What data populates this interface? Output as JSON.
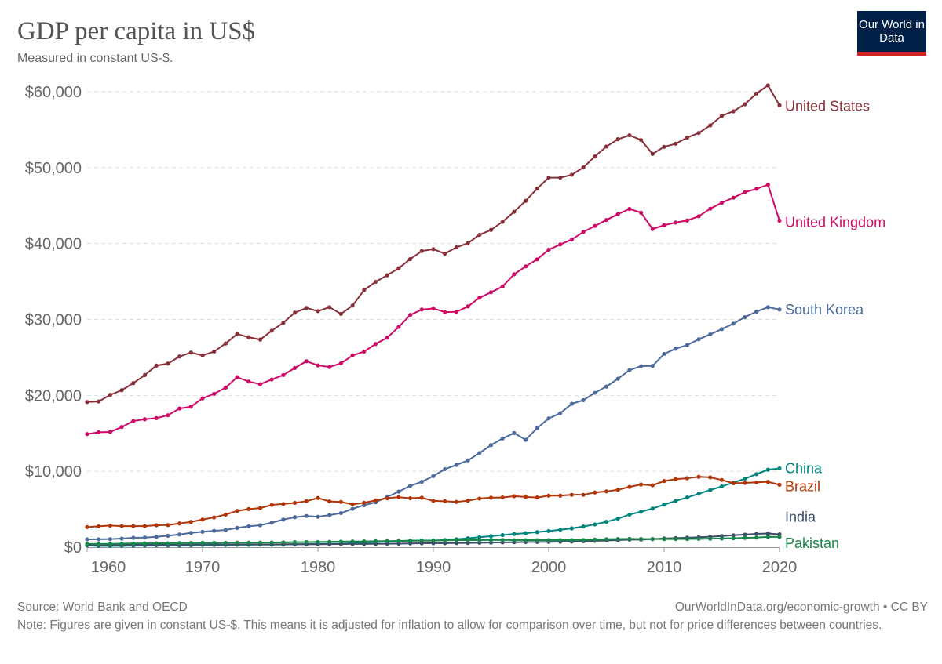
{
  "header": {
    "title": "GDP per capita in US$",
    "subtitle": "Measured in constant US-$.",
    "logo_text": "Our World in Data"
  },
  "footer": {
    "source": "Source: World Bank and OECD",
    "credit": "OurWorldInData.org/economic-growth • CC BY",
    "note": "Note: Figures are given in constant US-$. This means it is adjusted for inflation to allow for comparison over time, but not for price differences between countries."
  },
  "colors": {
    "logo_bg": "#002147",
    "logo_bar": "#ce261e",
    "grid": "#dddddd"
  },
  "chart_data": {
    "type": "line",
    "title": "GDP per capita in US$",
    "subtitle": "Measured in constant US-$.",
    "xlim": [
      1960,
      2020
    ],
    "ylim": [
      0,
      60000
    ],
    "x_ticks": [
      1960,
      1970,
      1980,
      1990,
      2000,
      2010,
      2020
    ],
    "y_ticks": [
      0,
      10000,
      20000,
      30000,
      40000,
      50000,
      60000
    ],
    "y_tick_labels": [
      "$0",
      "$10,000",
      "$20,000",
      "$30,000",
      "$40,000",
      "$50,000",
      "$60,000"
    ],
    "x_tick_labels": [
      "1960",
      "1970",
      "1980",
      "1990",
      "2000",
      "2010",
      "2020"
    ],
    "grid": "horizontal dashed",
    "legend": "inline labels at line ends (right)",
    "x_start": 1960,
    "series": [
      {
        "name": "United States",
        "color": "#883039",
        "values": [
          19130,
          19200,
          20060,
          20680,
          21610,
          22680,
          23920,
          24190,
          25120,
          25640,
          25260,
          25770,
          26840,
          28080,
          27660,
          27350,
          28520,
          29560,
          30900,
          31520,
          31100,
          31620,
          30730,
          31830,
          33860,
          34960,
          35820,
          36750,
          37950,
          39020,
          39260,
          38670,
          39500,
          40050,
          41150,
          41800,
          42870,
          44180,
          45620,
          47240,
          48680,
          48680,
          49060,
          50020,
          51470,
          52780,
          53740,
          54260,
          53640,
          51810,
          52740,
          53150,
          53950,
          54560,
          55560,
          56840,
          57420,
          58350,
          59760,
          60830,
          58210
        ]
      },
      {
        "name": "United Kingdom",
        "color": "#cf0a66",
        "values": [
          14900,
          15140,
          15180,
          15830,
          16620,
          16860,
          17000,
          17380,
          18270,
          18510,
          19610,
          20200,
          21020,
          22400,
          21820,
          21470,
          22090,
          22680,
          23610,
          24500,
          23950,
          23740,
          24220,
          25260,
          25770,
          26770,
          27600,
          29010,
          30590,
          31310,
          31450,
          30970,
          31000,
          31720,
          32860,
          33580,
          34340,
          35950,
          36990,
          37920,
          39190,
          39880,
          40530,
          41530,
          42320,
          43110,
          43870,
          44560,
          44070,
          41910,
          42420,
          42770,
          43040,
          43590,
          44590,
          45380,
          46040,
          46760,
          47200,
          47750,
          43010
        ]
      },
      {
        "name": "South Korea",
        "color": "#4c6a9c",
        "values": [
          1030,
          1040,
          1065,
          1130,
          1240,
          1270,
          1370,
          1510,
          1680,
          1890,
          2030,
          2160,
          2270,
          2540,
          2750,
          2890,
          3230,
          3640,
          3950,
          4110,
          4010,
          4220,
          4490,
          5050,
          5540,
          5920,
          6620,
          7320,
          8080,
          8610,
          9370,
          10280,
          10840,
          11430,
          12400,
          13450,
          14320,
          15040,
          14150,
          15690,
          16970,
          17650,
          18890,
          19370,
          20340,
          21160,
          22190,
          23330,
          23850,
          23880,
          25460,
          26150,
          26630,
          27390,
          28040,
          28730,
          29450,
          30310,
          31030,
          31620,
          31310
        ]
      },
      {
        "name": "China",
        "color": "#00847e",
        "values": [
          230,
          170,
          160,
          175,
          200,
          230,
          250,
          230,
          220,
          250,
          290,
          300,
          300,
          320,
          320,
          340,
          330,
          350,
          380,
          410,
          430,
          450,
          480,
          530,
          600,
          680,
          730,
          800,
          860,
          880,
          870,
          950,
          1050,
          1180,
          1320,
          1460,
          1600,
          1740,
          1850,
          1990,
          2130,
          2300,
          2480,
          2720,
          3000,
          3340,
          3760,
          4290,
          4670,
          5090,
          5610,
          6100,
          6550,
          7040,
          7530,
          8010,
          8500,
          9020,
          9620,
          10210,
          10380
        ]
      },
      {
        "name": "Brazil",
        "color": "#b13507",
        "values": [
          2650,
          2750,
          2850,
          2780,
          2780,
          2780,
          2890,
          2920,
          3130,
          3330,
          3640,
          3920,
          4300,
          4780,
          5020,
          5150,
          5570,
          5700,
          5840,
          6060,
          6480,
          6030,
          5960,
          5640,
          5850,
          6170,
          6450,
          6590,
          6450,
          6520,
          6100,
          6060,
          5960,
          6130,
          6410,
          6520,
          6550,
          6720,
          6620,
          6550,
          6790,
          6790,
          6900,
          6900,
          7210,
          7350,
          7560,
          7940,
          8260,
          8150,
          8710,
          8960,
          9090,
          9270,
          9200,
          8850,
          8430,
          8470,
          8540,
          8610,
          8220
        ]
      },
      {
        "name": "India",
        "color": "#3c4e66",
        "values": [
          300,
          305,
          310,
          315,
          325,
          315,
          310,
          325,
          335,
          350,
          360,
          355,
          350,
          355,
          355,
          370,
          370,
          385,
          400,
          380,
          390,
          400,
          410,
          420,
          430,
          440,
          455,
          465,
          495,
          515,
          530,
          525,
          540,
          555,
          580,
          605,
          635,
          650,
          680,
          690,
          700,
          725,
          740,
          785,
          830,
          880,
          935,
          990,
          1000,
          1070,
          1150,
          1200,
          1250,
          1310,
          1380,
          1470,
          1570,
          1660,
          1750,
          1810,
          1700
        ]
      },
      {
        "name": "Pakistan",
        "color": "#18864b",
        "values": [
          420,
          430,
          440,
          460,
          490,
          500,
          510,
          520,
          540,
          560,
          580,
          570,
          575,
          590,
          600,
          610,
          620,
          635,
          660,
          670,
          690,
          715,
          740,
          750,
          765,
          790,
          805,
          830,
          855,
          865,
          875,
          900,
          930,
          925,
          930,
          945,
          950,
          925,
          925,
          925,
          930,
          925,
          925,
          950,
          1000,
          1050,
          1080,
          1100,
          1090,
          1075,
          1070,
          1075,
          1085,
          1100,
          1125,
          1150,
          1190,
          1225,
          1260,
          1370,
          1360
        ]
      }
    ]
  }
}
